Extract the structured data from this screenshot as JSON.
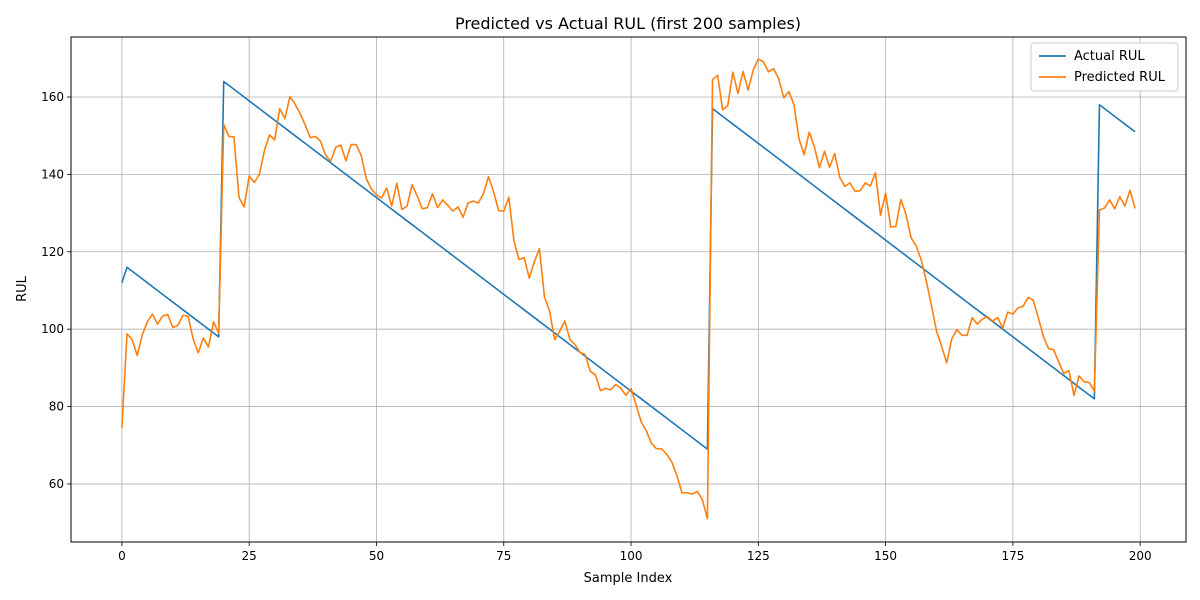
{
  "chart_data": {
    "type": "line",
    "title": "Predicted vs Actual RUL (first 200 samples)",
    "xlabel": "Sample Index",
    "ylabel": "RUL",
    "xlim": [
      -10,
      209
    ],
    "ylim": [
      45,
      175.5
    ],
    "xticks": [
      0,
      25,
      50,
      75,
      100,
      125,
      150,
      175,
      200
    ],
    "yticks": [
      60,
      80,
      100,
      120,
      140,
      160
    ],
    "grid": true,
    "legend_position": "top-right",
    "series": [
      {
        "name": "Actual RUL",
        "color": "#1f77b4",
        "segments": [
          {
            "start": 0,
            "start_value": 112
          },
          {
            "start": 1,
            "start_value": 116,
            "step": -1,
            "count": 19
          },
          {
            "start": 20,
            "start_value": 164,
            "step": -1,
            "count": 96
          },
          {
            "start": 116,
            "start_value": 157,
            "step": -1,
            "count": 76
          },
          {
            "start": 192,
            "start_value": 158,
            "step": -1,
            "count": 8
          }
        ]
      },
      {
        "name": "Predicted RUL",
        "color": "#ff7f0e",
        "x_start": 0,
        "values": [
          74.5,
          98.8,
          97.3,
          93.2,
          98.5,
          101.9,
          103.9,
          101.3,
          103.4,
          103.8,
          100.4,
          101.0,
          103.6,
          103.3,
          97.4,
          93.9,
          97.7,
          95.4,
          101.9,
          99.0,
          152.9,
          149.8,
          149.7,
          134.0,
          131.6,
          139.6,
          137.9,
          140.0,
          146.2,
          150.2,
          148.9,
          157.0,
          154.4,
          160.1,
          158.2,
          155.7,
          152.8,
          149.5,
          149.8,
          148.6,
          145.0,
          143.4,
          147.0,
          147.6,
          143.5,
          147.7,
          147.7,
          144.9,
          138.9,
          136.2,
          134.7,
          133.9,
          136.5,
          131.8,
          137.7,
          130.9,
          131.8,
          137.3,
          134.4,
          131.1,
          131.4,
          135.0,
          131.4,
          133.4,
          132.0,
          130.5,
          131.6,
          128.9,
          132.6,
          133.1,
          132.6,
          135.0,
          139.4,
          135.5,
          130.6,
          130.5,
          134.1,
          122.8,
          118.0,
          118.5,
          113.2,
          117.4,
          120.8,
          108.3,
          104.7,
          97.3,
          99.5,
          102.1,
          97.3,
          96.0,
          94.0,
          93.4,
          89.1,
          88.2,
          84.1,
          84.7,
          84.3,
          85.7,
          84.7,
          82.9,
          84.7,
          80.4,
          76.0,
          73.7,
          70.5,
          69.1,
          69.1,
          67.7,
          65.7,
          62.2,
          57.7,
          57.7,
          57.4,
          58.1,
          56.0,
          51.0,
          164.5,
          165.6,
          156.7,
          157.8,
          166.4,
          160.9,
          166.6,
          161.8,
          167.0,
          169.8,
          169.1,
          166.5,
          167.3,
          164.7,
          159.8,
          161.4,
          158.0,
          149.1,
          145.1,
          150.9,
          147.2,
          141.7,
          146.0,
          141.8,
          145.4,
          139.2,
          136.9,
          137.8,
          135.6,
          135.8,
          137.8,
          137.0,
          140.4,
          129.4,
          135.2,
          126.4,
          126.5,
          133.5,
          129.7,
          123.6,
          121.5,
          117.9,
          112.4,
          106.1,
          99.5,
          95.6,
          91.3,
          97.5,
          99.9,
          98.4,
          98.4,
          103.0,
          101.3,
          102.6,
          103.2,
          102.1,
          103.0,
          100.3,
          104.4,
          103.9,
          105.5,
          105.9,
          108.2,
          107.5,
          102.9,
          98.1,
          95.0,
          94.7,
          91.5,
          88.5,
          89.3,
          82.9,
          87.9,
          86.4,
          86.2,
          84.0,
          130.8,
          131.3,
          133.4,
          131.1,
          134.2,
          131.8,
          135.9,
          131.2
        ]
      }
    ]
  }
}
